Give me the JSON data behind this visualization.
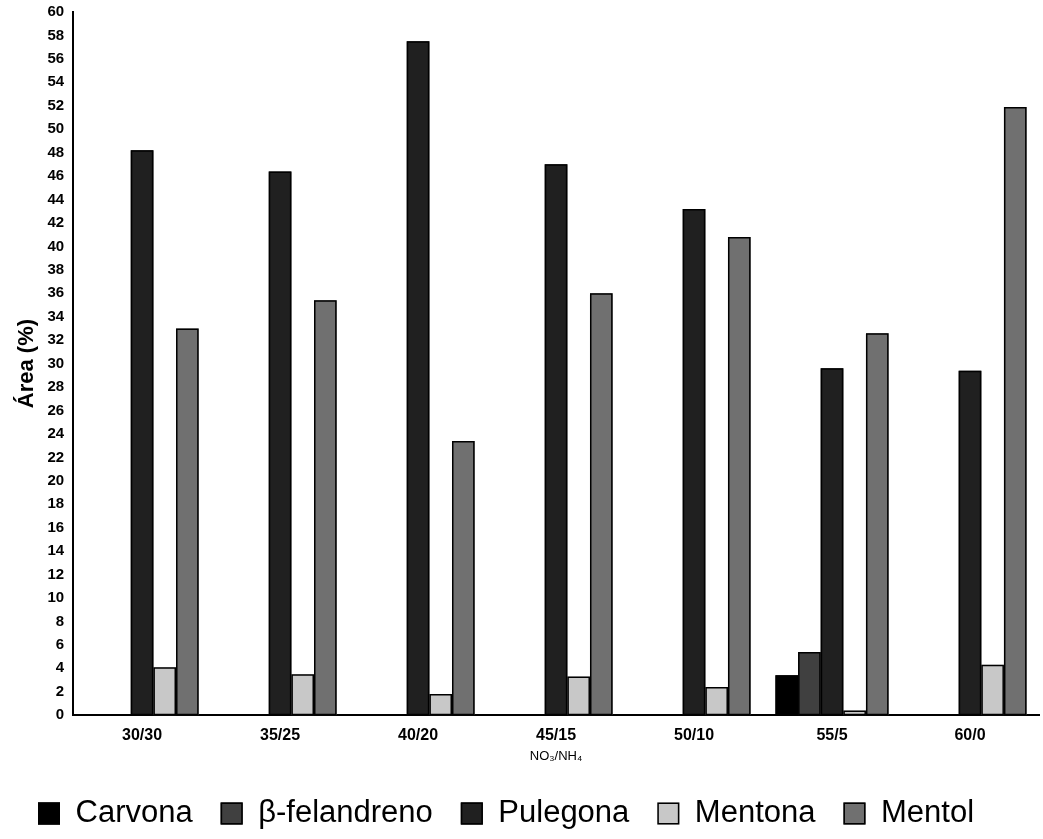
{
  "chart_data": {
    "type": "bar",
    "xlabel": "NO₃/NH₄",
    "ylabel": "Área (%)",
    "categories": [
      "30/30",
      "35/25",
      "40/20",
      "45/15",
      "50/10",
      "55/5",
      "60/0"
    ],
    "series": [
      {
        "name": "Carvona",
        "color": "#000000",
        "values": [
          null,
          null,
          null,
          null,
          null,
          3.4,
          null
        ]
      },
      {
        "name": "β-felandreno",
        "color": "#404040",
        "values": [
          null,
          null,
          null,
          null,
          null,
          5.4,
          null
        ]
      },
      {
        "name": "Pulegona",
        "color": "#202020",
        "values": [
          48.2,
          46.4,
          57.5,
          47.0,
          43.2,
          29.6,
          29.4
        ]
      },
      {
        "name": "Mentona",
        "color": "#c8c8c8",
        "values": [
          4.1,
          3.5,
          1.8,
          3.3,
          2.4,
          0.4,
          4.3
        ]
      },
      {
        "name": "Mentol",
        "color": "#707070",
        "values": [
          33.0,
          35.4,
          23.4,
          36.0,
          40.8,
          32.6,
          51.9
        ]
      }
    ],
    "ylim": [
      0,
      60
    ],
    "yticks": [
      0,
      2,
      4,
      6,
      8,
      10,
      12,
      14,
      16,
      18,
      20,
      22,
      24,
      26,
      28,
      30,
      32,
      34,
      36,
      38,
      40,
      42,
      44,
      46,
      48,
      50,
      52,
      54,
      56,
      58,
      60
    ],
    "grid": false,
    "legend": "bottom"
  }
}
